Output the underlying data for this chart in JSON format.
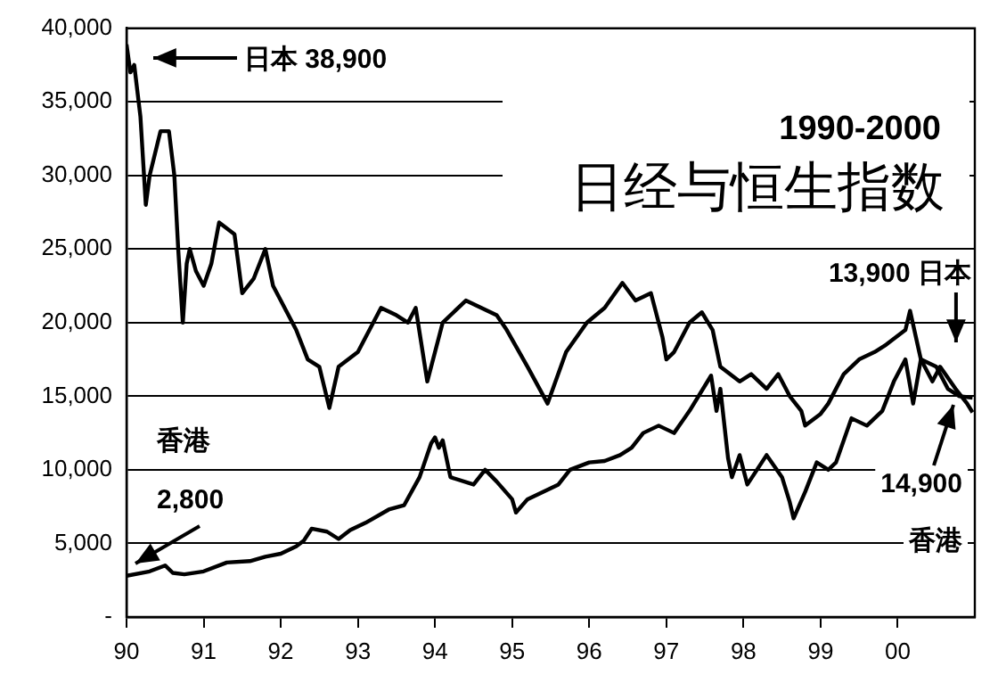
{
  "chart_data": {
    "type": "line",
    "title": "日经与恒生指数",
    "subtitle": "1990-2000",
    "xlim": [
      1990,
      2001
    ],
    "xticks": [
      {
        "value": 1990,
        "label": "90"
      },
      {
        "value": 1991,
        "label": "91"
      },
      {
        "value": 1992,
        "label": "92"
      },
      {
        "value": 1993,
        "label": "93"
      },
      {
        "value": 1994,
        "label": "94"
      },
      {
        "value": 1995,
        "label": "95"
      },
      {
        "value": 1996,
        "label": "96"
      },
      {
        "value": 1997,
        "label": "97"
      },
      {
        "value": 1998,
        "label": "98"
      },
      {
        "value": 1999,
        "label": "99"
      },
      {
        "value": 2000,
        "label": "00"
      }
    ],
    "ylim": [
      0,
      40000
    ],
    "yticks": [
      {
        "value": 0,
        "label": "-"
      },
      {
        "value": 5000,
        "label": "5,000"
      },
      {
        "value": 10000,
        "label": "10,000"
      },
      {
        "value": 15000,
        "label": "15,000"
      },
      {
        "value": 20000,
        "label": "20,000"
      },
      {
        "value": 25000,
        "label": "25,000"
      },
      {
        "value": 30000,
        "label": "30,000"
      },
      {
        "value": 35000,
        "label": "35,000"
      },
      {
        "value": 40000,
        "label": "40,000"
      }
    ],
    "grid": "y",
    "legend": false,
    "marker": "none",
    "line_style": "solid",
    "series": [
      {
        "color": "#000000",
        "x": [
          1990,
          1990.05,
          1990.1,
          1990.18,
          1990.25,
          1990.3,
          1990.44,
          1990.55,
          1990.62,
          1990.67,
          1990.73,
          1990.78,
          1990.82,
          1990.9,
          1991,
          1991.1,
          1991.2,
          1991.4,
          1991.5,
          1991.65,
          1991.8,
          1991.9,
          1992,
          1992.2,
          1992.35,
          1992.5,
          1992.63,
          1992.75,
          1993,
          1993.3,
          1993.5,
          1993.65,
          1993.75,
          1993.9,
          1994.1,
          1994.4,
          1994.6,
          1994.8,
          1994.93,
          1995.2,
          1995.46,
          1995.7,
          1995.97,
          1996.2,
          1996.43,
          1996.6,
          1996.8,
          1996.95,
          1997,
          1997.1,
          1997.3,
          1997.46,
          1997.6,
          1997.7,
          1997.95,
          1998.1,
          1998.3,
          1998.45,
          1998.6,
          1998.75,
          1998.8,
          1999,
          1999.1,
          1999.3,
          1999.5,
          1999.7,
          1999.85,
          2000.1,
          2000.16,
          2000.3,
          2000.45,
          2000.55,
          2000.75,
          2000.9,
          2000.97
        ],
        "values": [
          38900,
          37000,
          37500,
          34000,
          28000,
          30000,
          33000,
          33000,
          30000,
          25000,
          20000,
          24000,
          25000,
          23500,
          22500,
          24000,
          26800,
          26000,
          22000,
          23000,
          25000,
          22500,
          21500,
          19500,
          17500,
          17000,
          14200,
          17000,
          18000,
          21000,
          20500,
          20000,
          21000,
          16000,
          20000,
          21500,
          21000,
          20500,
          19500,
          17000,
          14500,
          18000,
          20000,
          21000,
          22700,
          21500,
          22000,
          19000,
          17500,
          18000,
          20000,
          20700,
          19500,
          17000,
          16000,
          16500,
          15500,
          16500,
          15000,
          14000,
          13000,
          13800,
          14500,
          16500,
          17500,
          18000,
          18500,
          19500,
          20800,
          17500,
          16000,
          17000,
          15500,
          14500,
          13900
        ]
      },
      {
        "color": "#000000",
        "x": [
          1990,
          1990.3,
          1990.5,
          1990.6,
          1990.75,
          1991,
          1991.3,
          1991.6,
          1991.8,
          1992,
          1992.2,
          1992.3,
          1992.4,
          1992.6,
          1992.75,
          1992.9,
          1993.1,
          1993.4,
          1993.6,
          1993.8,
          1993.95,
          1994,
          1994.05,
          1994.1,
          1994.2,
          1994.5,
          1994.65,
          1994.8,
          1995,
          1995.05,
          1995.2,
          1995.4,
          1995.6,
          1995.75,
          1996,
          1996.2,
          1996.4,
          1996.55,
          1996.7,
          1996.9,
          1997.1,
          1997.3,
          1997.58,
          1997.65,
          1997.7,
          1997.8,
          1997.85,
          1997.95,
          1998.05,
          1998.3,
          1998.5,
          1998.6,
          1998.65,
          1998.8,
          1998.95,
          1999.1,
          1999.2,
          1999.4,
          1999.6,
          1999.8,
          1999.95,
          2000.1,
          2000.2,
          2000.3,
          2000.5,
          2000.65,
          2000.8,
          2000.97
        ],
        "values": [
          2800,
          3100,
          3500,
          3000,
          2900,
          3100,
          3700,
          3800,
          4100,
          4300,
          4800,
          5200,
          6000,
          5800,
          5300,
          5900,
          6400,
          7300,
          7600,
          9500,
          11800,
          12200,
          11500,
          12000,
          9500,
          9000,
          10000,
          9200,
          8000,
          7100,
          8000,
          8500,
          9000,
          10000,
          10500,
          10600,
          11000,
          11500,
          12500,
          13000,
          12500,
          14000,
          16400,
          14000,
          15500,
          10800,
          9500,
          11000,
          9000,
          11000,
          9500,
          7800,
          6700,
          8500,
          10500,
          10000,
          10500,
          13500,
          13000,
          14000,
          16000,
          17500,
          14500,
          17500,
          17000,
          15500,
          15000,
          14900
        ]
      }
    ],
    "annotations": [
      "日本 38,900",
      "13,900 日本",
      "14,900",
      "香港",
      "2,800",
      "香港"
    ]
  }
}
